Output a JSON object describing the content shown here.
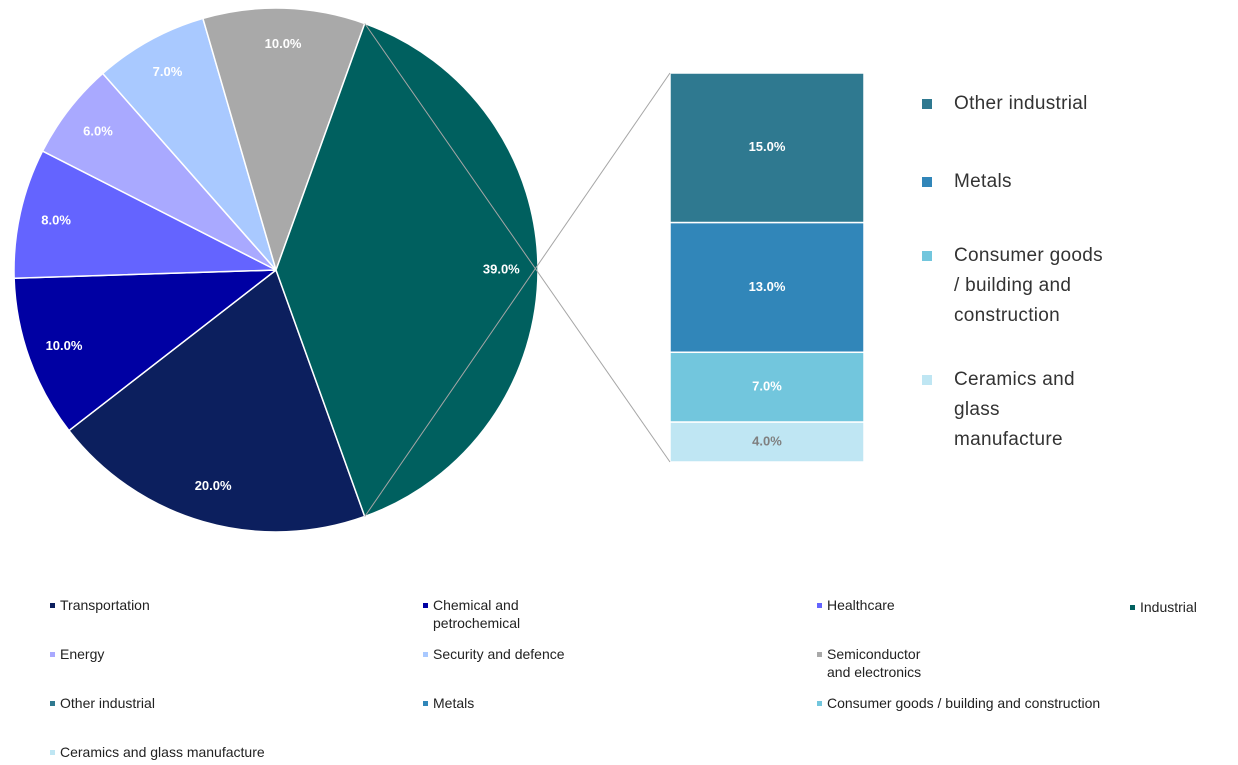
{
  "chart_data": {
    "type": "pie-of-bar",
    "pie": {
      "categories": [
        "Transportation",
        "Chemical and petrochemical",
        "Healthcare",
        "Energy",
        "Security and defence",
        "Semiconductor and electronics",
        "Industrial"
      ],
      "values": [
        20,
        10,
        8,
        6,
        7,
        10,
        39
      ],
      "value_labels": [
        "20.0%",
        "10.0%",
        "8.0%",
        "6.0%",
        "7.0%",
        "10.0%",
        "39.0%"
      ],
      "colors": [
        "#0c1f5e",
        "#0000a3",
        "#6464ff",
        "#a9a9ff",
        "#a9c9ff",
        "#a9a9a9",
        "#00605f"
      ]
    },
    "bar": {
      "categories": [
        "Other industrial",
        "Metals",
        "Consumer goods / building and construction",
        "Ceramics and glass manufacture"
      ],
      "values": [
        15,
        13,
        7,
        4
      ],
      "value_labels": [
        "15.0%",
        "13.0%",
        "7.0%",
        "4.0%"
      ],
      "colors": [
        "#2f7990",
        "#3186b9",
        "#72c6dd",
        "#bfe6f3"
      ]
    },
    "legend": "bottom"
  }
}
